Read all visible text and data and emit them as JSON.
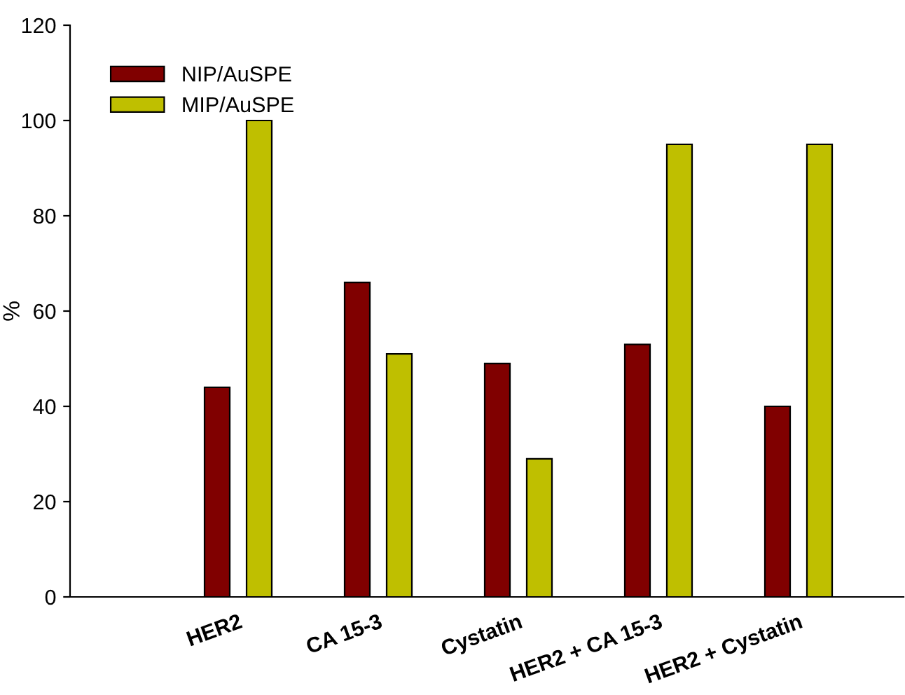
{
  "chart_data": {
    "type": "bar",
    "ylabel": "%",
    "categories": [
      "HER2",
      "CA 15-3",
      "Cystatin",
      "HER2 + CA 15-3",
      "HER2 + Cystatin"
    ],
    "series": [
      {
        "name": "NIP/AuSPE",
        "color": "#800000",
        "values": [
          44,
          66,
          49,
          53,
          40
        ]
      },
      {
        "name": "MIP/AuSPE",
        "color": "#bfbf00",
        "values": [
          100,
          51,
          29,
          95,
          95
        ]
      }
    ],
    "ylim": [
      0,
      120
    ],
    "yticks": [
      0,
      20,
      40,
      60,
      80,
      100,
      120
    ],
    "grid": false,
    "legend": "top left"
  }
}
